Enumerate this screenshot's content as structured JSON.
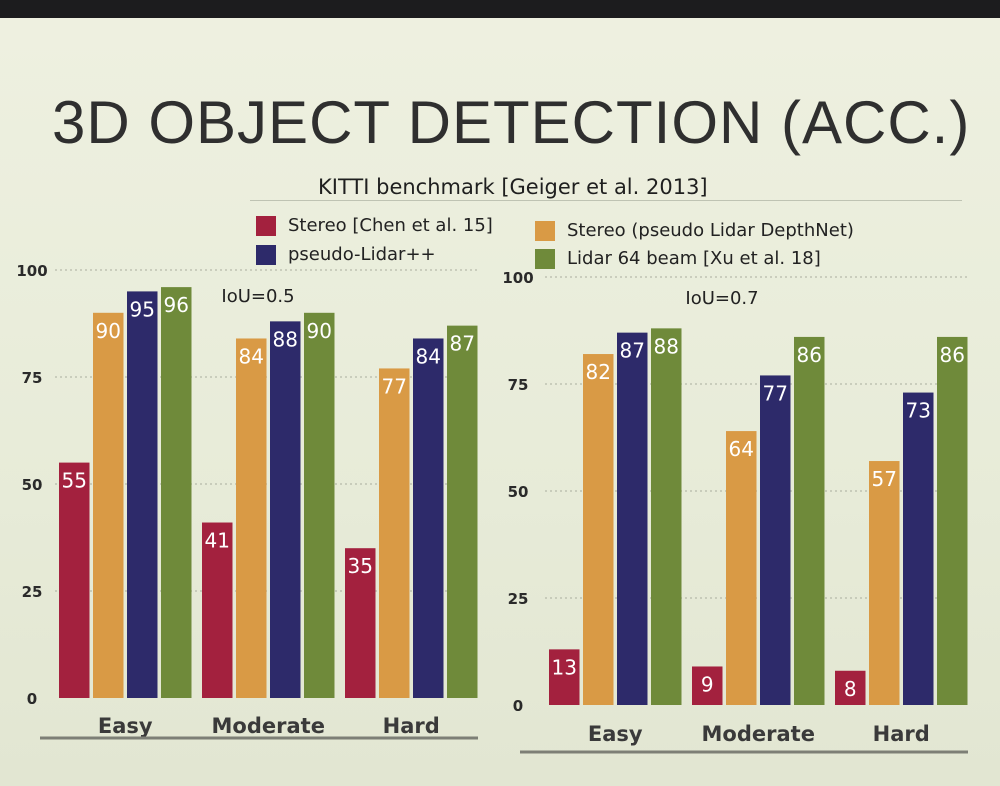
{
  "slide": {
    "title": "3D OBJECT DETECTION (ACC.)",
    "subtitle": "KITTI benchmark [Geiger et al. 2013]"
  },
  "legend": [
    {
      "label": "Stereo [Chen et al. 15]",
      "color": "#a3213e"
    },
    {
      "label": "Stereo (pseudo Lidar DepthNet)",
      "color": "#d99a45"
    },
    {
      "label": "pseudo-Lidar++",
      "color": "#2d2a6a"
    },
    {
      "label": "Lidar 64 beam [Xu et al. 18]",
      "color": "#6f8a3a"
    }
  ],
  "chart_data": [
    {
      "type": "bar",
      "title": "IoU=0.5",
      "categories": [
        "Easy",
        "Moderate",
        "Hard"
      ],
      "ylim": [
        0,
        100
      ],
      "yticks": [
        0,
        25,
        50,
        75,
        100
      ],
      "grid": true,
      "series": [
        {
          "name": "Stereo [Chen et al. 15]",
          "values": [
            55,
            41,
            35
          ]
        },
        {
          "name": "Stereo (pseudo Lidar DepthNet)",
          "values": [
            90,
            84,
            77
          ]
        },
        {
          "name": "pseudo-Lidar++",
          "values": [
            95,
            88,
            84
          ]
        },
        {
          "name": "Lidar 64 beam [Xu et al. 18]",
          "values": [
            96,
            90,
            87
          ]
        }
      ]
    },
    {
      "type": "bar",
      "title": "IoU=0.7",
      "categories": [
        "Easy",
        "Moderate",
        "Hard"
      ],
      "ylim": [
        0,
        100
      ],
      "yticks": [
        0,
        25,
        50,
        75,
        100
      ],
      "grid": true,
      "series": [
        {
          "name": "Stereo [Chen et al. 15]",
          "values": [
            13,
            9,
            8
          ]
        },
        {
          "name": "Stereo (pseudo Lidar DepthNet)",
          "values": [
            82,
            64,
            57
          ]
        },
        {
          "name": "pseudo-Lidar++",
          "values": [
            87,
            77,
            73
          ]
        },
        {
          "name": "Lidar 64 beam [Xu et al. 18]",
          "values": [
            88,
            86,
            86
          ]
        }
      ]
    }
  ]
}
